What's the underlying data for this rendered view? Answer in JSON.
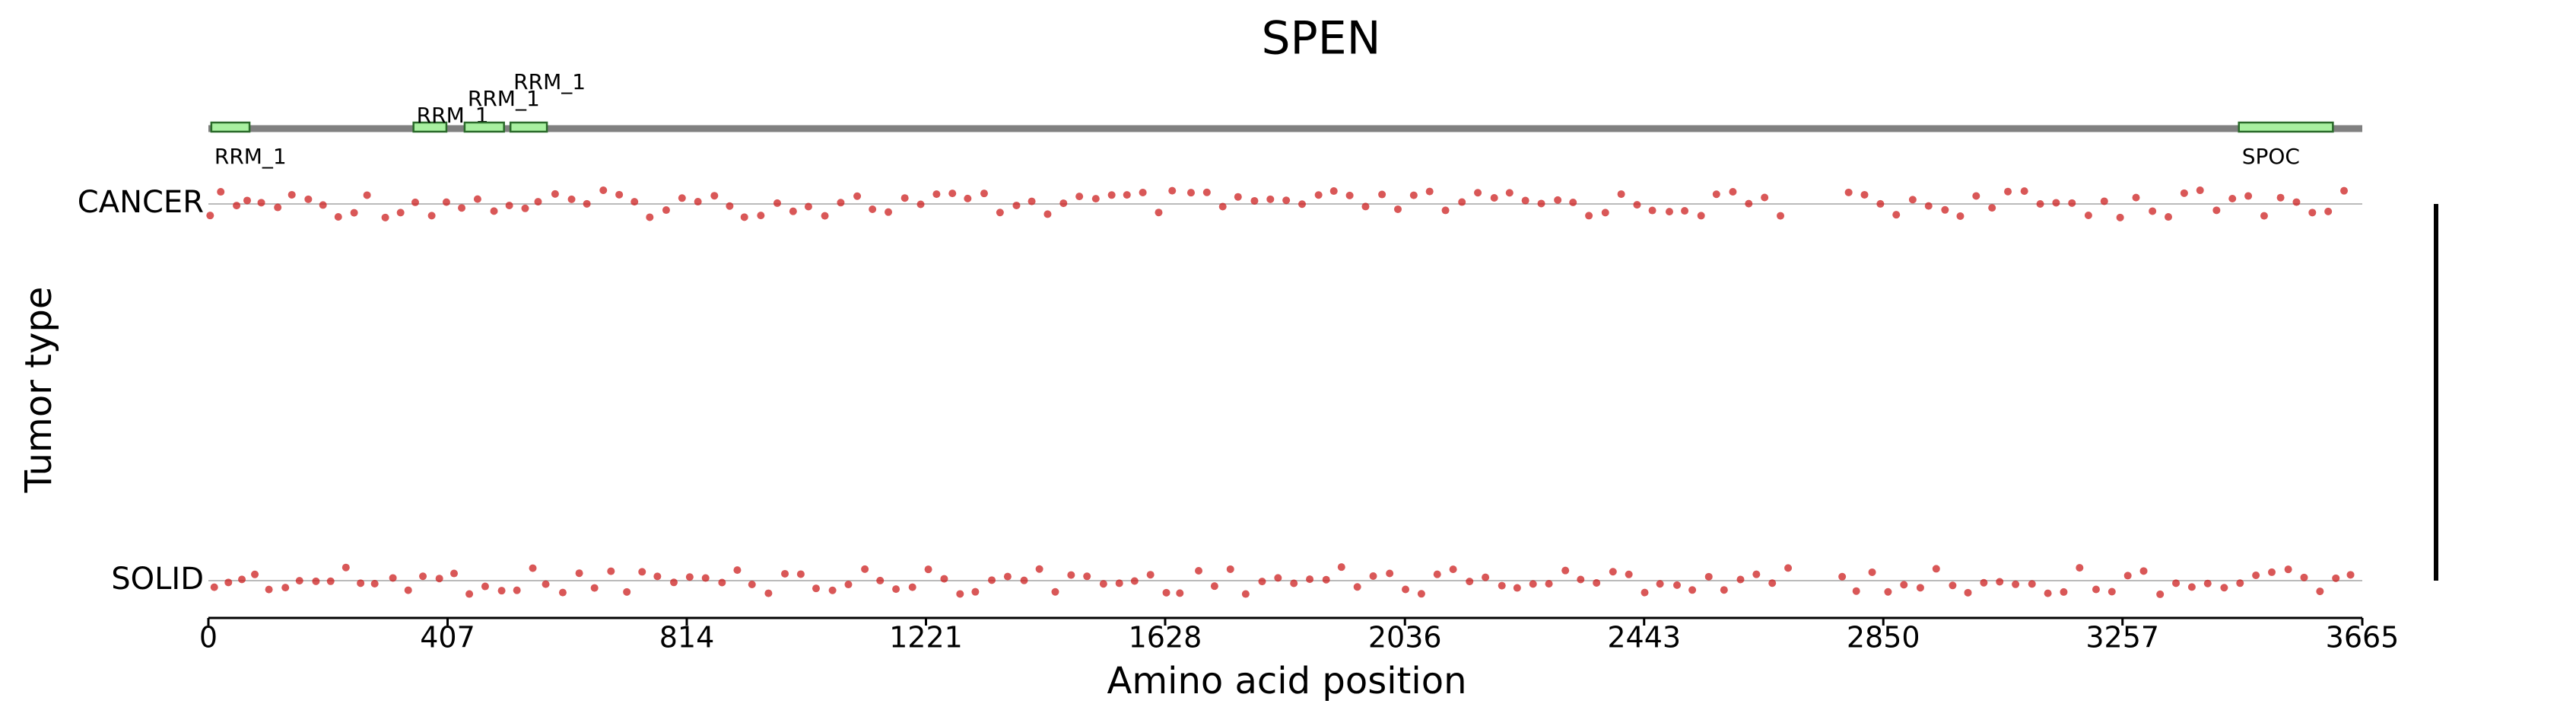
{
  "chart_data": {
    "type": "strip",
    "title": "SPEN",
    "x_label": "Amino acid position",
    "y_label": "Tumor type",
    "xlim": [
      0,
      3665
    ],
    "xticks": [
      0,
      407,
      814,
      1221,
      1628,
      2036,
      2443,
      2850,
      3257,
      3665
    ],
    "domains": [
      {
        "name": "RRM_1",
        "start": 5,
        "end": 70
      },
      {
        "name": "RRM_1",
        "start": 349,
        "end": 405
      },
      {
        "name": "RRM_1",
        "start": 436,
        "end": 503
      },
      {
        "name": "RRM_1",
        "start": 514,
        "end": 576
      },
      {
        "name": "SPOC",
        "start": 3455,
        "end": 3615
      }
    ],
    "series": [
      {
        "name": "CANCER",
        "color": "#cc1f1f",
        "values": [
          3,
          21,
          48,
          66,
          90,
          118,
          142,
          170,
          195,
          221,
          248,
          270,
          301,
          327,
          352,
          380,
          405,
          431,
          458,
          486,
          512,
          539,
          561,
          590,
          618,
          644,
          672,
          699,
          725,
          751,
          779,
          806,
          833,
          861,
          887,
          912,
          940,
          968,
          995,
          1021,
          1049,
          1076,
          1104,
          1130,
          1157,
          1185,
          1212,
          1239,
          1266,
          1292,
          1320,
          1347,
          1375,
          1401,
          1428,
          1455,
          1482,
          1510,
          1537,
          1563,
          1590,
          1617,
          1640,
          1672,
          1699,
          1726,
          1752,
          1780,
          1807,
          1834,
          1861,
          1889,
          1915,
          1942,
          1969,
          1997,
          2024,
          2051,
          2078,
          2105,
          2133,
          2160,
          2188,
          2214,
          2241,
          2268,
          2296,
          2322,
          2349,
          2377,
          2404,
          2431,
          2457,
          2486,
          2512,
          2540,
          2566,
          2594,
          2621,
          2648,
          2675,
          2791,
          2818,
          2845,
          2872,
          2900,
          2927,
          2955,
          2981,
          3008,
          3035,
          3062,
          3090,
          3117,
          3144,
          3171,
          3199,
          3226,
          3253,
          3280,
          3308,
          3335,
          3362,
          3389,
          3417,
          3444,
          3471,
          3498,
          3526,
          3553,
          3580,
          3607,
          3634
        ]
      },
      {
        "name": "SOLID",
        "color": "#cc1f1f",
        "values": [
          10,
          34,
          57,
          79,
          103,
          131,
          155,
          183,
          208,
          234,
          259,
          283,
          314,
          340,
          365,
          393,
          418,
          444,
          471,
          499,
          525,
          552,
          574,
          603,
          631,
          657,
          685,
          712,
          738,
          764,
          792,
          819,
          846,
          874,
          900,
          925,
          953,
          981,
          1008,
          1034,
          1062,
          1089,
          1117,
          1143,
          1170,
          1198,
          1225,
          1252,
          1279,
          1305,
          1333,
          1360,
          1388,
          1414,
          1441,
          1468,
          1495,
          1523,
          1550,
          1576,
          1603,
          1630,
          1653,
          1685,
          1712,
          1739,
          1765,
          1793,
          1820,
          1847,
          1874,
          1902,
          1928,
          1955,
          1982,
          2010,
          2037,
          2064,
          2091,
          2118,
          2146,
          2173,
          2201,
          2227,
          2254,
          2281,
          2309,
          2335,
          2362,
          2390,
          2417,
          2444,
          2470,
          2499,
          2525,
          2553,
          2579,
          2607,
          2634,
          2661,
          2688,
          2780,
          2804,
          2831,
          2858,
          2885,
          2913,
          2940,
          2968,
          2994,
          3021,
          3048,
          3075,
          3103,
          3130,
          3157,
          3184,
          3212,
          3239,
          3266,
          3293,
          3321,
          3348,
          3375,
          3402,
          3430,
          3457,
          3484,
          3511,
          3539,
          3566,
          3593,
          3620,
          3645
        ]
      }
    ]
  }
}
